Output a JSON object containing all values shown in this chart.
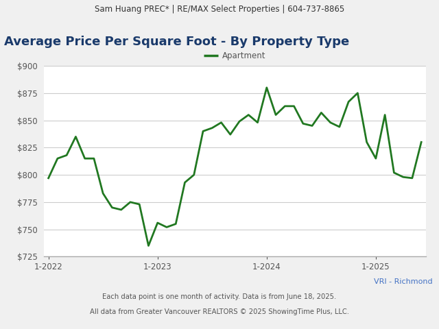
{
  "header_text": "Sam Huang PREC* | RE/MAX Select Properties | 604-737-8865",
  "title": "Average Price Per Square Foot - By Property Type",
  "legend_label": "Apartment",
  "line_color": "#217821",
  "footer_label": "VRI - Richmond",
  "footer_note1": "Each data point is one month of activity. Data is from June 18, 2025.",
  "footer_note2": "All data from Greater Vancouver REALTORS © 2025 ShowingTime Plus, LLC.",
  "background_color": "#f0f0f0",
  "plot_bg_color": "#ffffff",
  "header_bg_color": "#e0e0e0",
  "ylim": [
    725,
    900
  ],
  "yticks": [
    725,
    750,
    775,
    800,
    825,
    850,
    875,
    900
  ],
  "values": [
    797,
    815,
    818,
    835,
    815,
    815,
    783,
    770,
    768,
    775,
    773,
    735,
    756,
    752,
    755,
    793,
    800,
    840,
    843,
    848,
    837,
    849,
    855,
    848,
    880,
    855,
    863,
    863,
    847,
    845,
    857,
    848,
    844,
    867,
    875,
    830,
    815,
    855,
    802,
    798,
    797,
    830
  ],
  "xtick_positions": [
    0,
    12,
    24,
    36
  ],
  "xtick_labels": [
    "1-2022",
    "1-2023",
    "1-2024",
    "1-2025"
  ],
  "title_color": "#1a3a6b",
  "title_fontsize": 13,
  "header_fontsize": 8.5,
  "axis_label_color": "#555555",
  "footer_label_color": "#4472c4",
  "footer_note_color": "#555555",
  "grid_color": "#cccccc",
  "line_width": 2.0
}
